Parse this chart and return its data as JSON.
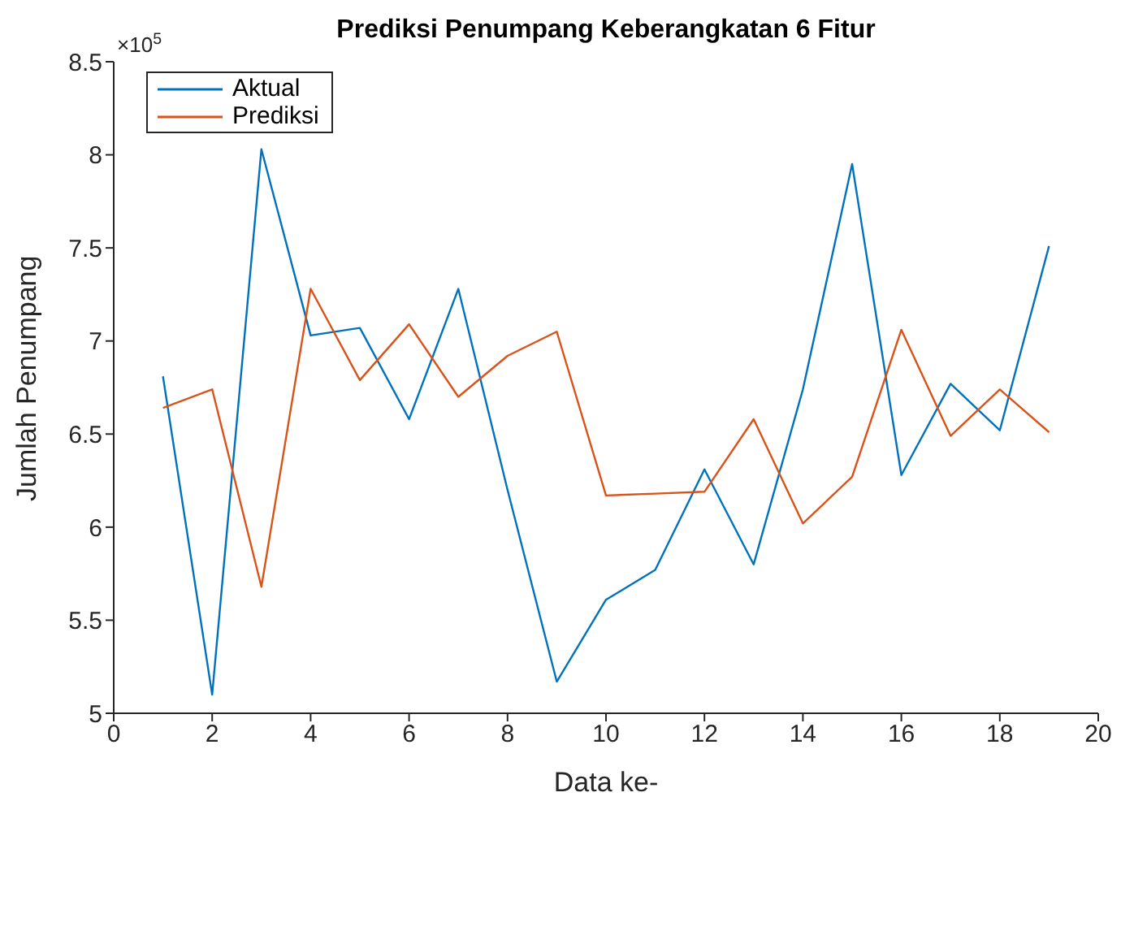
{
  "chart_data": {
    "type": "line",
    "title": "Prediksi Penumpang Keberangkatan 6 Fitur",
    "xlabel": "Data ke-",
    "ylabel": "Jumlah Penumpang",
    "annotations": [
      "×10$^{5}$"
    ],
    "x": [
      1,
      2,
      3,
      4,
      5,
      6,
      7,
      8,
      9,
      10,
      11,
      12,
      13,
      14,
      15,
      16,
      17,
      18,
      19
    ],
    "series": [
      {
        "name": "Aktual",
        "color": "#0072bd",
        "values": [
          6.81,
          5.1,
          8.03,
          7.03,
          7.07,
          6.58,
          7.28,
          6.2,
          5.17,
          5.61,
          5.77,
          6.31,
          5.8,
          6.74,
          7.95,
          6.28,
          6.77,
          6.52,
          7.51
        ]
      },
      {
        "name": "Prediksi",
        "color": "#d95319",
        "values": [
          6.64,
          6.74,
          5.68,
          7.28,
          6.79,
          7.09,
          6.7,
          6.92,
          7.05,
          6.17,
          6.18,
          6.19,
          6.58,
          6.02,
          6.27,
          7.06,
          6.49,
          6.74,
          6.51
        ]
      }
    ],
    "xlim": [
      0,
      20
    ],
    "xticks": [
      0,
      2,
      4,
      6,
      8,
      10,
      12,
      14,
      16,
      18,
      20
    ],
    "ylim": [
      5,
      8.5
    ],
    "yticks": [
      5,
      5.5,
      6,
      6.5,
      7,
      7.5,
      8,
      8.5
    ],
    "grid": false,
    "legend": "top left",
    "marker": "none",
    "line_style": "solid"
  }
}
